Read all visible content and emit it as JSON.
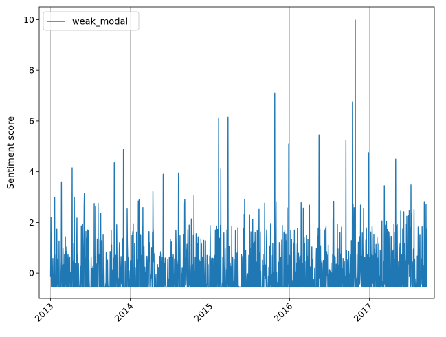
{
  "chart_data": {
    "type": "line",
    "title": "",
    "xlabel": "",
    "ylabel": "Sentiment score",
    "x_ticks": [
      "2013",
      "2014",
      "2015",
      "2016",
      "2017"
    ],
    "y_ticks": [
      0,
      2,
      4,
      6,
      8,
      10
    ],
    "xlim": [
      "2012-11-10",
      "2017-10-25"
    ],
    "ylim": [
      -1.0,
      10.5
    ],
    "grid": "vertical",
    "legend_position": "top-left",
    "baseline": -0.55,
    "series": [
      {
        "name": "weak_modal",
        "color": "#1f77b4",
        "start": "2013-01-01",
        "end": "2017-09-20",
        "peaks": [
          {
            "date": "2013-01-03",
            "value": 2.2
          },
          {
            "date": "2013-01-20",
            "value": 3.0
          },
          {
            "date": "2013-02-20",
            "value": 3.6
          },
          {
            "date": "2013-04-10",
            "value": 4.15
          },
          {
            "date": "2013-04-20",
            "value": 3.0
          },
          {
            "date": "2013-06-05",
            "value": 3.15
          },
          {
            "date": "2013-10-20",
            "value": 4.35
          },
          {
            "date": "2013-12-01",
            "value": 4.87
          },
          {
            "date": "2014-04-15",
            "value": 3.22
          },
          {
            "date": "2014-06-01",
            "value": 3.9
          },
          {
            "date": "2014-08-10",
            "value": 3.95
          },
          {
            "date": "2014-10-20",
            "value": 3.05
          },
          {
            "date": "2015-02-10",
            "value": 6.12
          },
          {
            "date": "2015-02-20",
            "value": 4.1
          },
          {
            "date": "2015-03-25",
            "value": 6.15
          },
          {
            "date": "2015-10-25",
            "value": 7.1
          },
          {
            "date": "2015-12-28",
            "value": 5.1
          },
          {
            "date": "2016-05-15",
            "value": 5.45
          },
          {
            "date": "2016-09-15",
            "value": 5.25
          },
          {
            "date": "2016-10-15",
            "value": 6.75
          },
          {
            "date": "2016-10-28",
            "value": 9.98
          },
          {
            "date": "2016-12-28",
            "value": 4.75
          },
          {
            "date": "2017-03-10",
            "value": 3.45
          },
          {
            "date": "2017-05-01",
            "value": 4.5
          },
          {
            "date": "2017-07-10",
            "value": 3.48
          }
        ]
      }
    ]
  }
}
